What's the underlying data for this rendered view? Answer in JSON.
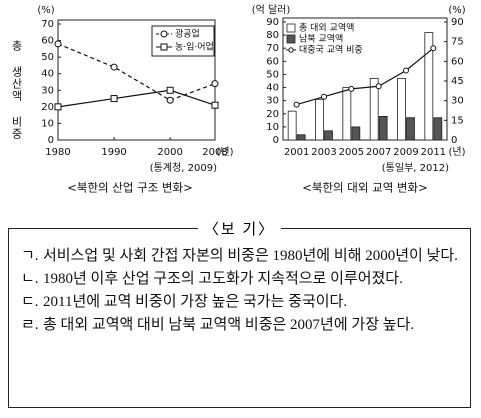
{
  "chart_data": [
    {
      "type": "line",
      "y_unit": "(%)",
      "y_label": "총 생산액 비중",
      "x_unit": "(년)",
      "source": "(통계청, 2009)",
      "caption": "<북한의 산업 구조 변화>",
      "x": [
        1980,
        1990,
        2000,
        2008
      ],
      "xlim": [
        1980,
        2008
      ],
      "xticks": [
        1980,
        1990,
        2000,
        2008
      ],
      "ylim": [
        0,
        70
      ],
      "yticks": [
        0,
        10,
        20,
        30,
        40,
        50,
        60,
        70
      ],
      "legend": "upper right",
      "series": [
        {
          "name": "광공업",
          "color": "#111",
          "dash": true,
          "marker": "circle",
          "values": [
            58,
            44,
            24,
            34
          ]
        },
        {
          "name": "농·임·어업",
          "color": "#111",
          "dash": false,
          "marker": "square",
          "values": [
            20,
            25,
            30,
            21
          ]
        }
      ]
    },
    {
      "type": "bar",
      "y_unit": "(억 달러)",
      "y2_unit": "(%)",
      "x_unit": "(년)",
      "source": "(통일부, 2012)",
      "caption": "<북한의 대외 교역 변화>",
      "categories": [
        "2001",
        "2003",
        "2005",
        "2007",
        "2009",
        "2011"
      ],
      "ylim": [
        0,
        90
      ],
      "yticks": [
        0,
        10,
        20,
        30,
        40,
        50,
        60,
        70,
        80,
        90
      ],
      "y2lim": [
        0,
        90
      ],
      "y2ticks": [
        0,
        15,
        30,
        45,
        60,
        75,
        90
      ],
      "legend": "upper left",
      "series": [
        {
          "name": "총 대외 교역액",
          "color": "#ffffff",
          "values": [
            22,
            31,
            40,
            47,
            47,
            82
          ]
        },
        {
          "name": "남북 교역액",
          "color": "#555555",
          "values": [
            4,
            7,
            10,
            18,
            17,
            17
          ]
        },
        {
          "name": "대중국 교역 비중",
          "color": "#111111",
          "axis": "y2",
          "type": "line",
          "values": [
            27,
            33,
            39,
            41,
            53,
            70
          ]
        }
      ]
    }
  ],
  "box": {
    "title": "〈보 기〉",
    "items": [
      {
        "marker": "ㄱ.",
        "text": "서비스업 및 사회 간접 자본의 비중은 1980년에 비해 2000년이 낮다."
      },
      {
        "marker": "ㄴ.",
        "text": "1980년 이후 산업 구조의 고도화가 지속적으로 이루어졌다."
      },
      {
        "marker": "ㄷ.",
        "text": "2011년에 교역 비중이 가장 높은 국가는 중국이다."
      },
      {
        "marker": "ㄹ.",
        "text": "총 대외 교역액 대비 남북 교역액 비중은 2007년에 가장 높다."
      }
    ]
  }
}
